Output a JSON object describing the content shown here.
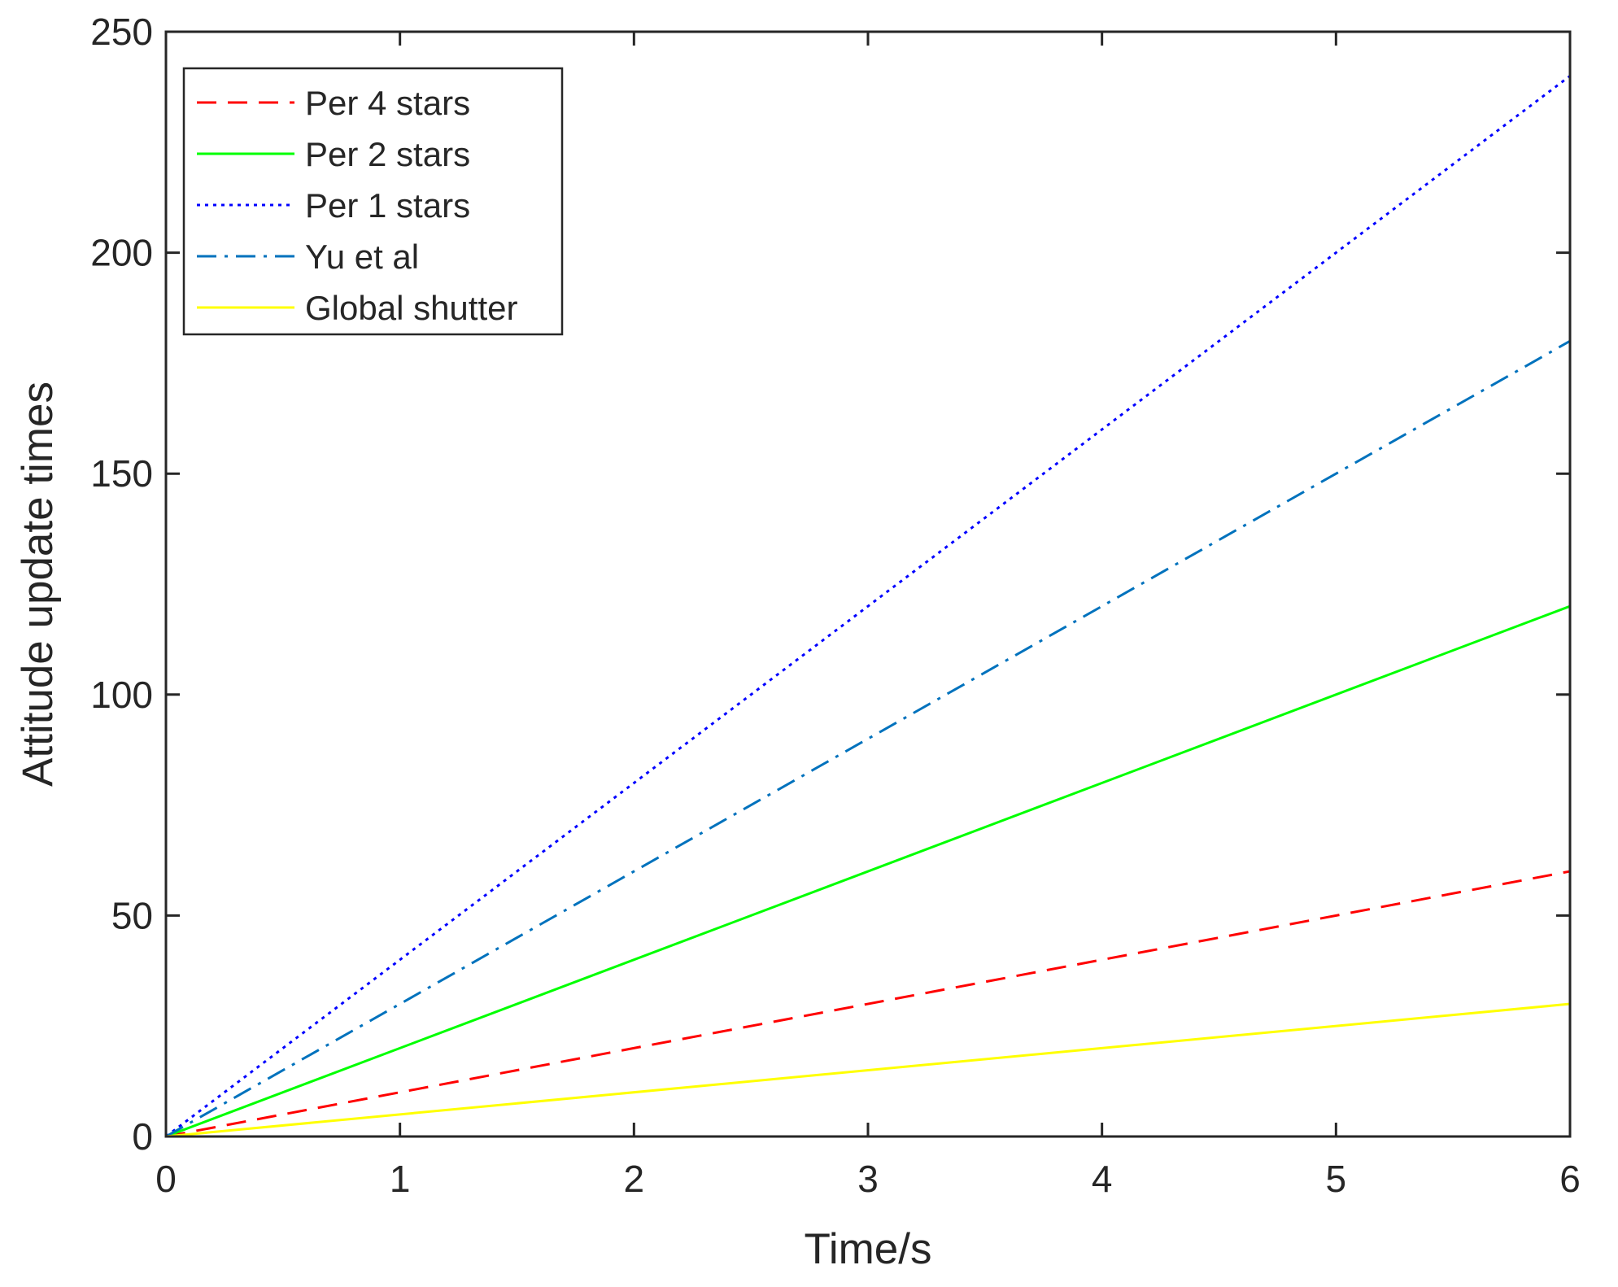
{
  "chart_data": {
    "type": "line",
    "title": "",
    "xlabel": "Time/s",
    "ylabel": "Attitude update times",
    "xlim": [
      0,
      6
    ],
    "ylim": [
      0,
      250
    ],
    "xticks": [
      0,
      1,
      2,
      3,
      4,
      5,
      6
    ],
    "yticks": [
      0,
      50,
      100,
      150,
      200,
      250
    ],
    "grid": false,
    "legend_position": "top-left",
    "series": [
      {
        "name": "Per 4 stars",
        "color": "#ff0000",
        "style": "dashed",
        "x": [
          0,
          6
        ],
        "y": [
          0,
          60
        ]
      },
      {
        "name": "Per 2 stars",
        "color": "#00ff00",
        "style": "solid",
        "x": [
          0,
          6
        ],
        "y": [
          0,
          120
        ]
      },
      {
        "name": "Per 1 stars",
        "color": "#0000ff",
        "style": "dotted",
        "x": [
          0,
          6
        ],
        "y": [
          0,
          240
        ]
      },
      {
        "name": "Yu et al",
        "color": "#0072bd",
        "style": "dashdot",
        "x": [
          0,
          6
        ],
        "y": [
          0,
          180
        ]
      },
      {
        "name": "Global shutter",
        "color": "#ffff00",
        "style": "solid",
        "x": [
          0,
          6
        ],
        "y": [
          0,
          30
        ]
      }
    ]
  }
}
